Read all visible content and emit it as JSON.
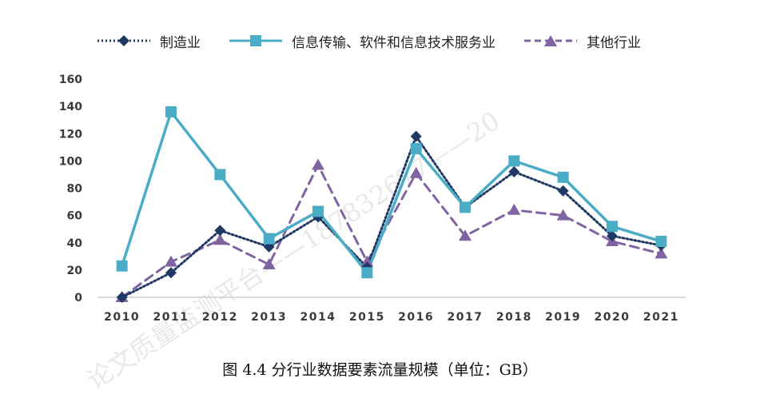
{
  "chart_data": {
    "type": "line",
    "categories": [
      "2010",
      "2011",
      "2012",
      "2013",
      "2014",
      "2015",
      "2016",
      "2017",
      "2018",
      "2019",
      "2020",
      "2021"
    ],
    "series": [
      {
        "name": "制造业",
        "color": "#1f3864",
        "line_style": "dotted",
        "marker": "diamond",
        "values": [
          0,
          18,
          49,
          37,
          59,
          22,
          118,
          66,
          92,
          78,
          45,
          38
        ]
      },
      {
        "name": "信息传输、软件和信息技术服务业",
        "color": "#4bacc6",
        "line_style": "solid",
        "marker": "square",
        "values": [
          23,
          136,
          90,
          43,
          63,
          18,
          109,
          66,
          100,
          88,
          52,
          41
        ]
      },
      {
        "name": "其他行业",
        "color": "#8064a2",
        "line_style": "dashed",
        "marker": "triangle",
        "values": [
          0,
          26,
          42,
          24,
          97,
          26,
          91,
          45,
          64,
          60,
          41,
          32
        ]
      }
    ],
    "ylim": [
      0,
      160
    ],
    "yticks": [
      "0",
      "20",
      "40",
      "60",
      "80",
      "100",
      "120",
      "140",
      "160"
    ],
    "grid": false,
    "legend_position": "top",
    "caption": "图 4.4  分行业数据要素流量规模（单位：GB）"
  },
  "watermark": "论文质量监测平台——187832677——20"
}
